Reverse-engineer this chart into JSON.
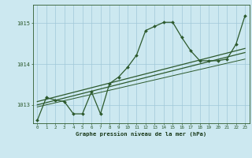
{
  "xlabel": "Graphe pression niveau de la mer (hPa)",
  "x_ticks": [
    0,
    1,
    2,
    3,
    4,
    5,
    6,
    7,
    8,
    9,
    10,
    11,
    12,
    13,
    14,
    15,
    16,
    17,
    18,
    19,
    20,
    21,
    22,
    23
  ],
  "ylim": [
    1012.55,
    1015.45
  ],
  "yticks": [
    1013,
    1014,
    1015
  ],
  "xlim": [
    -0.5,
    23.5
  ],
  "bg_color": "#cce8f0",
  "grid_color": "#a0c8d8",
  "line_color": "#2d5a2d",
  "main_series_x": [
    0,
    1,
    2,
    3,
    4,
    5,
    6,
    7,
    8,
    9,
    10,
    11,
    12,
    13,
    14,
    15,
    16,
    17,
    18,
    19,
    20,
    21,
    22,
    23
  ],
  "main_series_y": [
    1012.62,
    1013.18,
    1013.12,
    1013.08,
    1012.78,
    1012.78,
    1013.32,
    1012.78,
    1013.52,
    1013.68,
    1013.92,
    1014.22,
    1014.82,
    1014.92,
    1015.02,
    1015.02,
    1014.65,
    1014.32,
    1014.08,
    1014.08,
    1014.08,
    1014.12,
    1014.48,
    1015.18
  ],
  "trend1_x": [
    0,
    23
  ],
  "trend1_y": [
    1013.0,
    1014.28
  ],
  "trend2_x": [
    0,
    23
  ],
  "trend2_y": [
    1013.08,
    1014.38
  ],
  "trend3_x": [
    0,
    23
  ],
  "trend3_y": [
    1012.95,
    1014.12
  ]
}
